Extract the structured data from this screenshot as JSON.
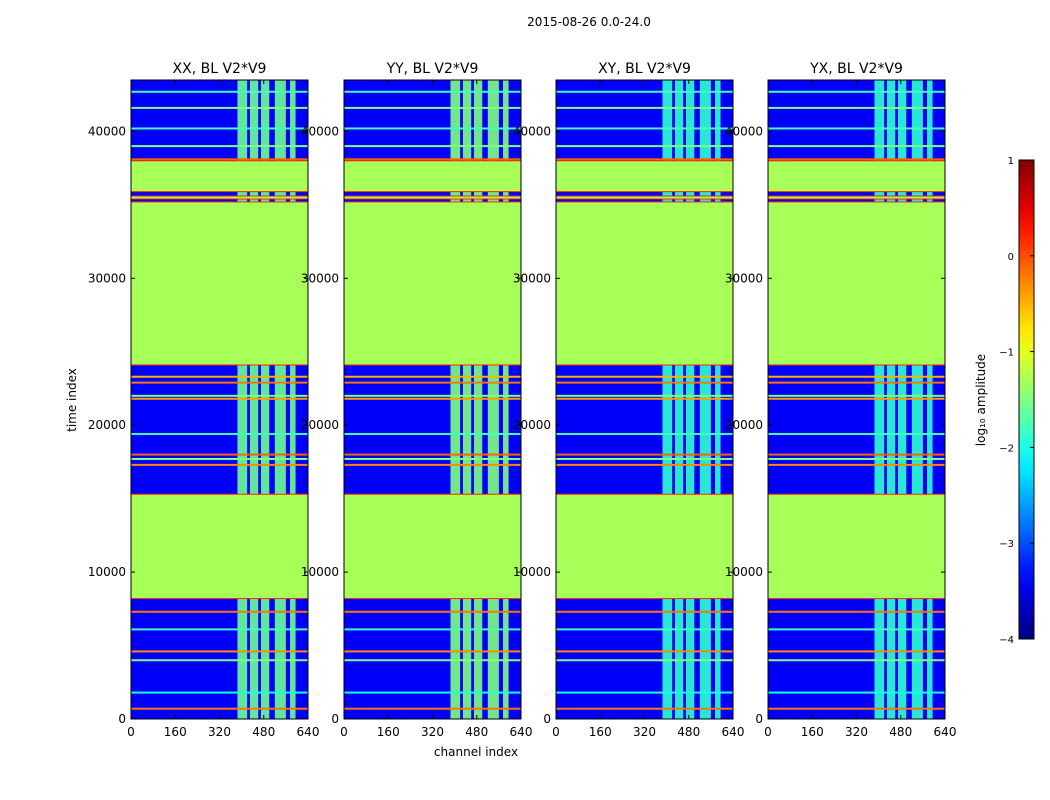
{
  "chart_data": {
    "type": "heatmap",
    "suptitle": "2015-08-26 0.0-24.0",
    "xlabel": "channel index",
    "ylabel": "time index",
    "xlim": [
      0,
      640
    ],
    "ylim": [
      0,
      43500
    ],
    "x_ticks": [
      0,
      160,
      320,
      480,
      640
    ],
    "y_ticks": [
      0,
      10000,
      20000,
      30000,
      40000
    ],
    "x_tick_labels": [
      "0",
      "160",
      "320",
      "480",
      "640"
    ],
    "y_tick_labels": [
      "0",
      "10000",
      "20000",
      "30000",
      "40000"
    ],
    "panels": [
      {
        "title": "XX, BL V2*V9",
        "brightness": 1.0
      },
      {
        "title": "YY, BL V2*V9",
        "brightness": 1.05
      },
      {
        "title": "XY, BL V2*V9",
        "brightness": 0.85
      },
      {
        "title": "YX, BL V2*V9",
        "brightness": 0.85
      }
    ],
    "colorbar": {
      "label": "log₁₀ amplitude",
      "range": [
        -4,
        1
      ],
      "ticks": [
        -4,
        -3,
        -2,
        -1,
        0,
        1
      ],
      "tick_labels": [
        "−4",
        "−3",
        "−2",
        "−1",
        "0",
        "1"
      ],
      "colormap": "jet"
    },
    "flagged_time_ranges": [
      [
        8200,
        15300
      ],
      [
        24100,
        35200
      ],
      [
        35400,
        35600
      ],
      [
        35900,
        38000
      ]
    ],
    "flag_log_amplitude": -1.3,
    "background_log_amplitude": -3.4,
    "rfi_channel_bands": [
      [
        385,
        420
      ],
      [
        430,
        460
      ],
      [
        470,
        500
      ],
      [
        520,
        560
      ],
      [
        575,
        595
      ]
    ],
    "rfi_log_amplitude": -1.6,
    "horizontal_lines": [
      {
        "t": 700,
        "log_amp": -0.2
      },
      {
        "t": 1800,
        "log_amp": -2.0
      },
      {
        "t": 4000,
        "log_amp": -1.5
      },
      {
        "t": 4600,
        "log_amp": -0.3
      },
      {
        "t": 6100,
        "log_amp": -1.8
      },
      {
        "t": 7300,
        "log_amp": -0.2
      },
      {
        "t": 17300,
        "log_amp": -0.3
      },
      {
        "t": 17700,
        "log_amp": -1.5
      },
      {
        "t": 18000,
        "log_amp": -0.1
      },
      {
        "t": 19400,
        "log_amp": -1.8
      },
      {
        "t": 21800,
        "log_amp": -0.4
      },
      {
        "t": 22000,
        "log_amp": -1.5
      },
      {
        "t": 22900,
        "log_amp": -0.2
      },
      {
        "t": 23300,
        "log_amp": -0.5
      },
      {
        "t": 38100,
        "log_amp": -0.1
      },
      {
        "t": 39000,
        "log_amp": -1.5
      },
      {
        "t": 40200,
        "log_amp": -1.8
      },
      {
        "t": 41600,
        "log_amp": -1.5
      },
      {
        "t": 42700,
        "log_amp": -1.8
      }
    ]
  }
}
